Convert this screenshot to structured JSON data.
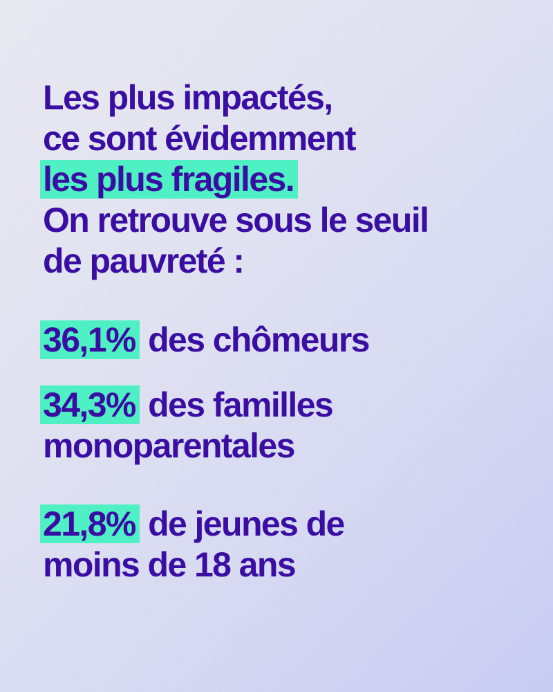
{
  "intro": {
    "line1": "Les plus impactés,",
    "line2": "ce sont évidemment",
    "line3_highlight": "les plus fragiles.",
    "line4": "On retrouve sous le seuil",
    "line5": "de pauvreté :"
  },
  "stats": [
    {
      "value": "36,1%",
      "label_line1": " des chômeurs",
      "label_line2": ""
    },
    {
      "value": "34,3%",
      "label_line1": " des familles",
      "label_line2": "monoparentales"
    },
    {
      "value": "21,8%",
      "label_line1": " de jeunes de",
      "label_line2": "moins de 18 ans"
    }
  ],
  "colors": {
    "text": "#3a0ea3",
    "highlight": "#4ff0c4",
    "background": "#e3e5f4"
  }
}
